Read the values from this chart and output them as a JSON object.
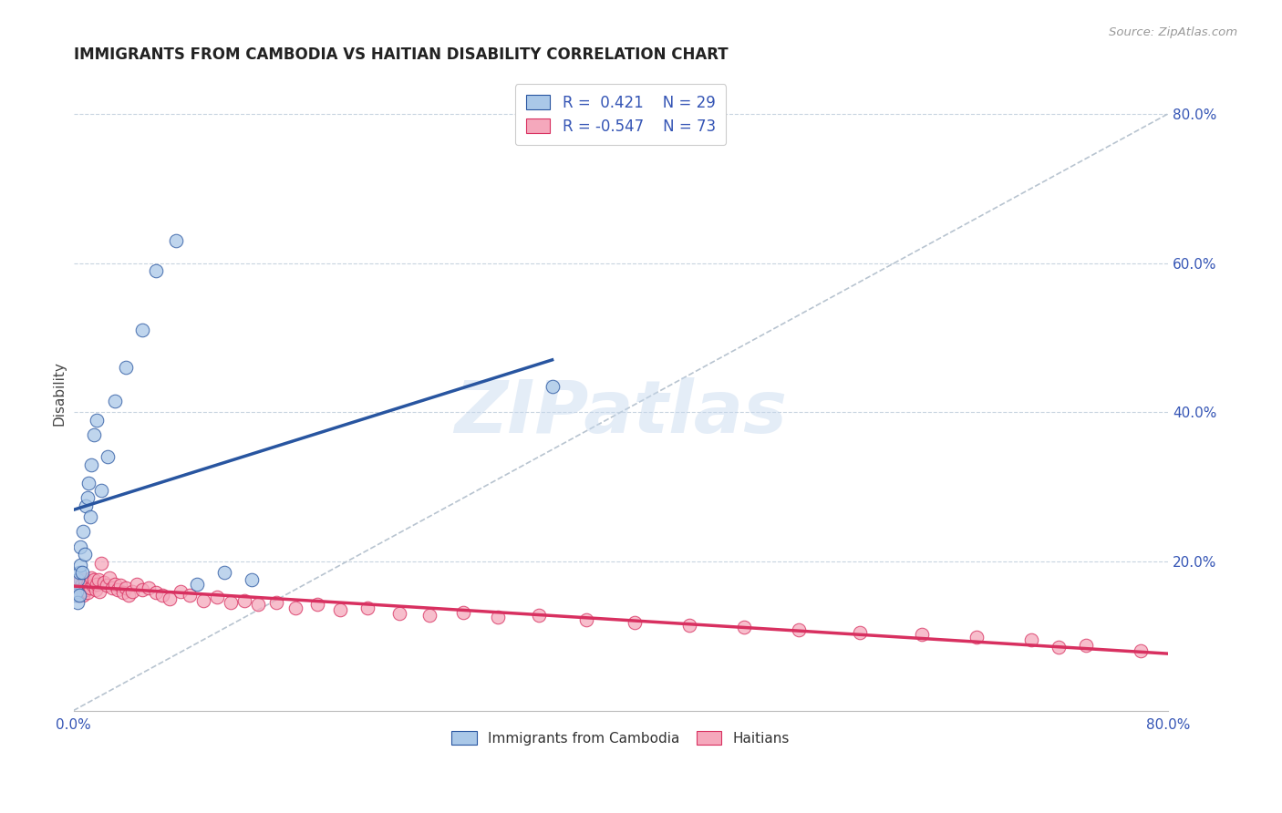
{
  "title": "IMMIGRANTS FROM CAMBODIA VS HAITIAN DISABILITY CORRELATION CHART",
  "source": "Source: ZipAtlas.com",
  "ylabel": "Disability",
  "xlim": [
    0.0,
    0.8
  ],
  "ylim": [
    0.0,
    0.85
  ],
  "ylabel_right_vals": [
    0.2,
    0.4,
    0.6,
    0.8
  ],
  "cambodia_R": 0.421,
  "cambodia_N": 29,
  "haitian_R": -0.547,
  "haitian_N": 73,
  "cambodia_color": "#aac8e8",
  "haitian_color": "#f5a8bc",
  "cambodia_line_color": "#2855a0",
  "haitian_line_color": "#d83060",
  "diagonal_color": "#b8c4d0",
  "background_color": "#ffffff",
  "grid_color": "#c8d4e0",
  "legend_text_color": "#3555b5",
  "cambodia_x": [
    0.001,
    0.002,
    0.003,
    0.003,
    0.004,
    0.004,
    0.005,
    0.005,
    0.006,
    0.007,
    0.008,
    0.009,
    0.01,
    0.011,
    0.012,
    0.013,
    0.015,
    0.017,
    0.02,
    0.025,
    0.03,
    0.038,
    0.05,
    0.06,
    0.075,
    0.09,
    0.11,
    0.13,
    0.35
  ],
  "cambodia_y": [
    0.155,
    0.16,
    0.175,
    0.145,
    0.185,
    0.155,
    0.195,
    0.22,
    0.185,
    0.24,
    0.21,
    0.275,
    0.285,
    0.305,
    0.26,
    0.33,
    0.37,
    0.39,
    0.295,
    0.34,
    0.415,
    0.46,
    0.51,
    0.59,
    0.63,
    0.17,
    0.185,
    0.175,
    0.435
  ],
  "haitian_x": [
    0.001,
    0.002,
    0.003,
    0.003,
    0.004,
    0.004,
    0.005,
    0.005,
    0.006,
    0.006,
    0.007,
    0.007,
    0.008,
    0.008,
    0.009,
    0.01,
    0.01,
    0.011,
    0.012,
    0.013,
    0.014,
    0.015,
    0.016,
    0.017,
    0.018,
    0.019,
    0.02,
    0.022,
    0.024,
    0.026,
    0.028,
    0.03,
    0.032,
    0.034,
    0.036,
    0.038,
    0.04,
    0.043,
    0.046,
    0.05,
    0.055,
    0.06,
    0.065,
    0.07,
    0.078,
    0.085,
    0.095,
    0.105,
    0.115,
    0.125,
    0.135,
    0.148,
    0.162,
    0.178,
    0.195,
    0.215,
    0.238,
    0.26,
    0.285,
    0.31,
    0.34,
    0.375,
    0.41,
    0.45,
    0.49,
    0.53,
    0.575,
    0.62,
    0.66,
    0.7,
    0.74,
    0.72,
    0.78
  ],
  "haitian_y": [
    0.165,
    0.17,
    0.168,
    0.155,
    0.172,
    0.158,
    0.175,
    0.16,
    0.17,
    0.162,
    0.165,
    0.155,
    0.168,
    0.175,
    0.162,
    0.17,
    0.158,
    0.172,
    0.165,
    0.178,
    0.168,
    0.175,
    0.162,
    0.17,
    0.175,
    0.16,
    0.198,
    0.172,
    0.168,
    0.178,
    0.165,
    0.17,
    0.162,
    0.168,
    0.158,
    0.165,
    0.155,
    0.16,
    0.17,
    0.162,
    0.165,
    0.158,
    0.155,
    0.15,
    0.16,
    0.155,
    0.148,
    0.152,
    0.145,
    0.148,
    0.142,
    0.145,
    0.138,
    0.142,
    0.135,
    0.138,
    0.13,
    0.128,
    0.132,
    0.125,
    0.128,
    0.122,
    0.118,
    0.115,
    0.112,
    0.108,
    0.105,
    0.102,
    0.098,
    0.095,
    0.088,
    0.085,
    0.08
  ]
}
